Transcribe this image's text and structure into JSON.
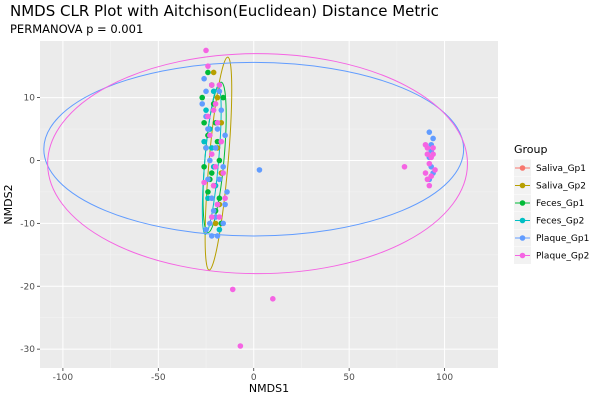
{
  "title": "NMDS CLR Plot with Aitchison(Euclidean) Distance Metric",
  "subtitle": "PERMANOVA p = 0.001",
  "chart_data": {
    "type": "scatter",
    "xlabel": "NMDS1",
    "ylabel": "NMDS2",
    "xlim": [
      -112,
      128
    ],
    "ylim": [
      -33,
      19
    ],
    "xticks": [
      -100,
      -50,
      0,
      50,
      100
    ],
    "yticks": [
      -30,
      -20,
      -10,
      0,
      10
    ],
    "grid": true,
    "background": "#ebebeb",
    "legend": {
      "title": "Group",
      "position": "right",
      "entries": [
        "Saliva_Gp1",
        "Saliva_Gp2",
        "Feces_Gp1",
        "Feces_Gp2",
        "Plaque_Gp1",
        "Plaque_Gp2"
      ]
    },
    "series": [
      {
        "name": "Saliva_Gp1",
        "color": "#F8766D",
        "ellipse": null,
        "points": []
      },
      {
        "name": "Saliva_Gp2",
        "color": "#B79F00",
        "ellipse": {
          "cx": -18.5,
          "cy": -0.5,
          "rx": 5.0,
          "ry": 17.0,
          "angle": 5
        },
        "points": [
          [
            -21,
            14
          ],
          [
            -19,
            10
          ],
          [
            -17,
            6
          ],
          [
            -19,
            2
          ],
          [
            -17,
            -2
          ],
          [
            -21,
            -4
          ],
          [
            -18,
            -7
          ],
          [
            -20,
            -10
          ]
        ]
      },
      {
        "name": "Feces_Gp1",
        "color": "#00BA38",
        "ellipse": {
          "cx": -20.5,
          "cy": 0.5,
          "rx": 5.0,
          "ry": 12.0,
          "angle": 5
        },
        "points": [
          [
            -27,
            10
          ],
          [
            -26,
            6
          ],
          [
            -24,
            4
          ],
          [
            -22,
            12
          ],
          [
            -21,
            9
          ],
          [
            -20,
            6
          ],
          [
            -19,
            3
          ],
          [
            -18,
            0
          ],
          [
            -22,
            -2
          ],
          [
            -24,
            -5
          ],
          [
            -20,
            -8
          ],
          [
            -18,
            -6
          ],
          [
            -17,
            -10
          ],
          [
            -25,
            2
          ],
          [
            -23,
            -3
          ],
          [
            -26,
            -1
          ],
          [
            -24,
            14
          ],
          [
            -16,
            10
          ]
        ]
      },
      {
        "name": "Feces_Gp2",
        "color": "#00BFC4",
        "ellipse": {
          "cx": -22.0,
          "cy": 0.0,
          "rx": 3.6,
          "ry": 11.8,
          "angle": 5
        },
        "points": [
          [
            -25,
            8
          ],
          [
            -23,
            5
          ],
          [
            -22,
            2
          ],
          [
            -21,
            -1
          ],
          [
            -20,
            -4
          ],
          [
            -19,
            -7
          ],
          [
            -18,
            -11
          ],
          [
            -24,
            -6
          ],
          [
            -26,
            3
          ],
          [
            -21,
            11
          ]
        ]
      },
      {
        "name": "Plaque_Gp1",
        "color": "#619CFF",
        "ellipse": {
          "cx": 0.0,
          "cy": 1.8,
          "rx": 110.0,
          "ry": 13.8,
          "angle": 0
        },
        "points": [
          [
            -26,
            13
          ],
          [
            -25,
            11
          ],
          [
            -27,
            9
          ],
          [
            -25,
            7
          ],
          [
            -24,
            5
          ],
          [
            -25,
            2
          ],
          [
            -23,
            0
          ],
          [
            -24,
            -3
          ],
          [
            -22,
            -6
          ],
          [
            -21,
            -8
          ],
          [
            -23,
            -10
          ],
          [
            -22,
            -12
          ],
          [
            -19,
            -12
          ],
          [
            -16,
            -10
          ],
          [
            -15,
            -7
          ],
          [
            -18,
            -3
          ],
          [
            -20,
            2
          ],
          [
            -19,
            5
          ],
          [
            -17,
            8
          ],
          [
            -18,
            11
          ],
          [
            -15,
            4
          ],
          [
            -16,
            -1
          ],
          [
            -14,
            -5
          ],
          [
            -20,
            -9
          ],
          [
            -25,
            -11
          ],
          [
            3,
            -1.5
          ],
          [
            92,
            4.5
          ],
          [
            94,
            3.5
          ],
          [
            93,
            1.5
          ],
          [
            92,
            0.5
          ],
          [
            93,
            -1
          ],
          [
            94,
            -2
          ],
          [
            92,
            -3
          ],
          [
            93,
            2.5
          ]
        ]
      },
      {
        "name": "Plaque_Gp2",
        "color": "#F564E3",
        "ellipse": {
          "cx": 2.0,
          "cy": -0.5,
          "rx": 110.0,
          "ry": 17.5,
          "angle": 0
        },
        "points": [
          [
            -25,
            17.5
          ],
          [
            -24,
            15
          ],
          [
            -22,
            12
          ],
          [
            -20,
            9
          ],
          [
            -19,
            6
          ],
          [
            -23,
            4
          ],
          [
            -22,
            1
          ],
          [
            -20,
            -1
          ],
          [
            -21,
            -4
          ],
          [
            -19,
            -7
          ],
          [
            -18,
            -9
          ],
          [
            -26,
            -3.5
          ],
          [
            -17,
            3
          ],
          [
            -16,
            -2
          ],
          [
            -24,
            7
          ],
          [
            -21,
            8
          ],
          [
            -18,
            12
          ],
          [
            -15,
            -6
          ],
          [
            -22,
            -9
          ],
          [
            -11,
            -20.5
          ],
          [
            10,
            -22
          ],
          [
            -7,
            -29.5
          ],
          [
            79,
            -1
          ],
          [
            90,
            2.5
          ],
          [
            91,
            1
          ],
          [
            92,
            -0.5
          ],
          [
            93,
            0.5
          ],
          [
            94,
            2
          ],
          [
            95,
            -1.5
          ],
          [
            91,
            -3
          ],
          [
            90,
            -2
          ],
          [
            94,
            1
          ],
          [
            92,
            -4
          ],
          [
            91,
            2
          ],
          [
            93,
            -2.5
          ]
        ]
      }
    ]
  }
}
